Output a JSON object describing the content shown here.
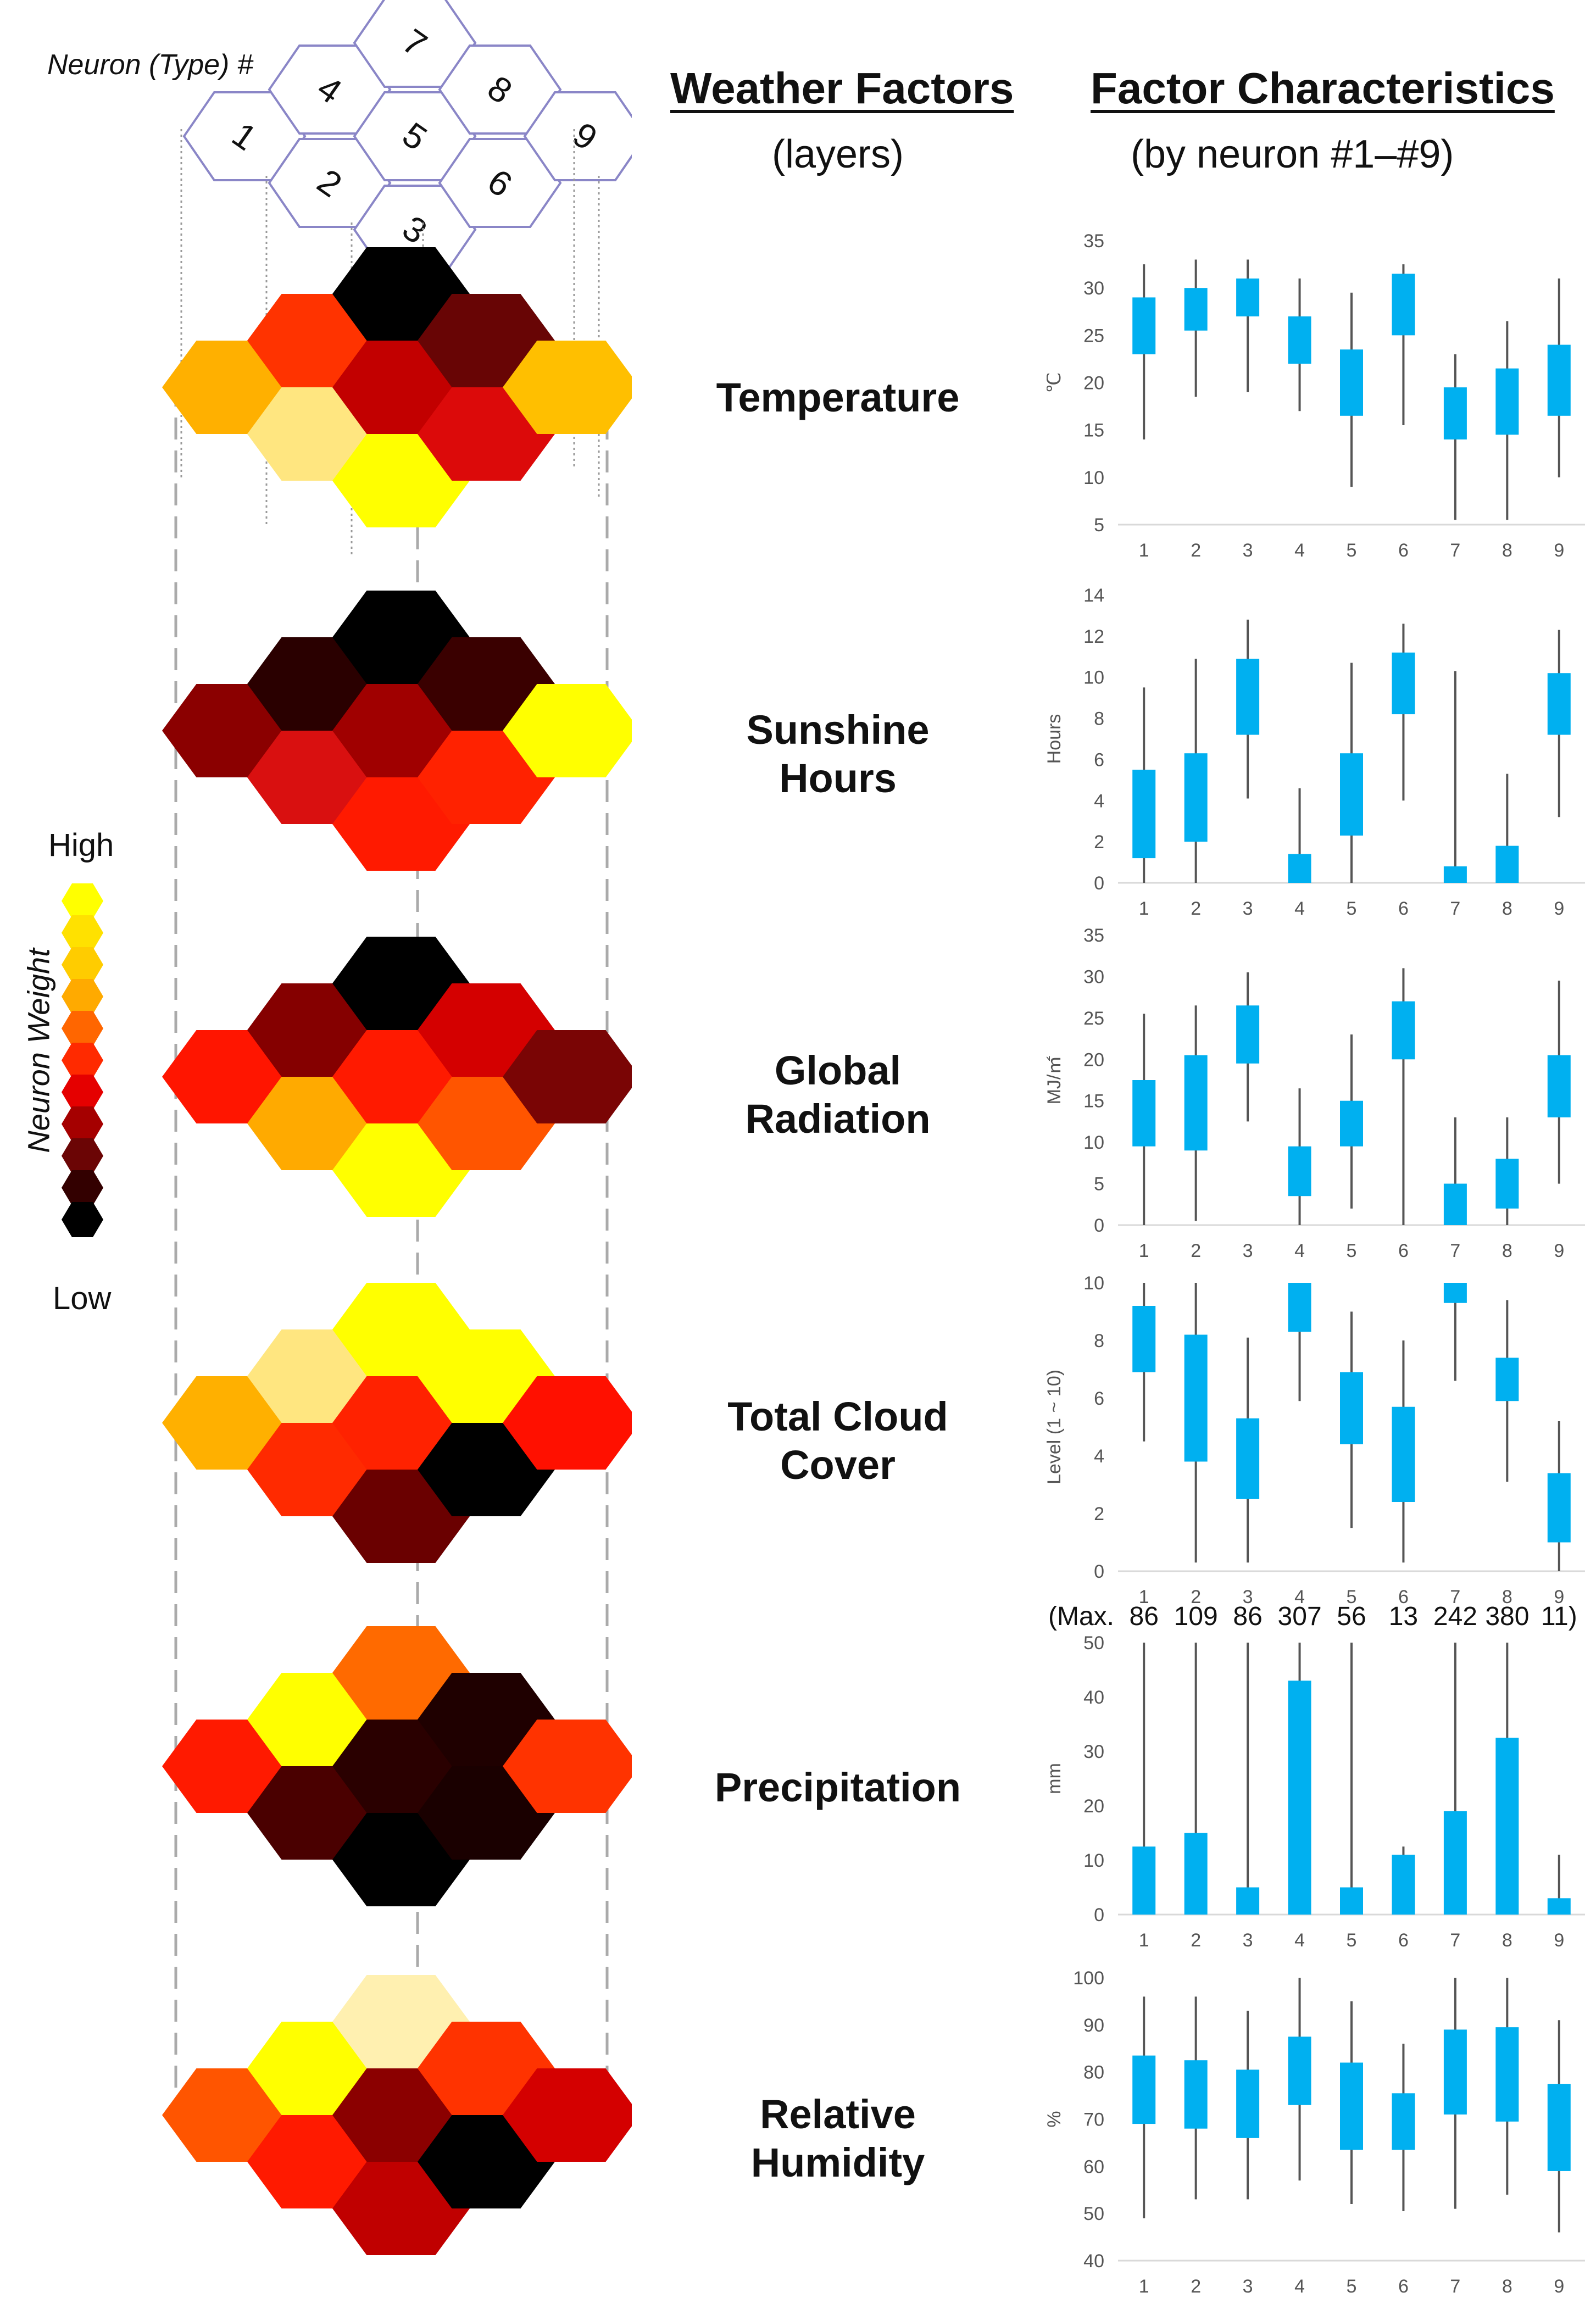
{
  "headers": {
    "weather_factors": "Weather Factors",
    "weather_factors_sub": "(layers)",
    "factor_characteristics": "Factor Characteristics",
    "factor_characteristics_sub": "(by neuron #1–#9)",
    "neuron_type": "Neuron (Type) #"
  },
  "neuron_numbers": [
    "1",
    "2",
    "3",
    "4",
    "5",
    "6",
    "7",
    "8",
    "9"
  ],
  "legend": {
    "title": "Neuron Weight",
    "high": "High",
    "low": "Low",
    "colors": [
      "#ffff00",
      "#ffe100",
      "#ffcc00",
      "#ffaa00",
      "#ff6600",
      "#ff2a00",
      "#e50000",
      "#a50000",
      "#6b0505",
      "#330000",
      "#000000"
    ]
  },
  "layers": [
    {
      "key": "temperature",
      "label_lines": [
        "Temperature"
      ],
      "colors": {
        "1": "#ffb000",
        "2": "#ffe680",
        "3": "#ffff00",
        "4": "#ff3300",
        "5": "#c20000",
        "6": "#dc0a0a",
        "7": "#000000",
        "8": "#680505",
        "9": "#ffbf00"
      }
    },
    {
      "key": "sunshine",
      "label_lines": [
        "Sunshine",
        "Hours"
      ],
      "colors": {
        "1": "#8b0000",
        "2": "#d91010",
        "3": "#ff1a00",
        "4": "#2a0000",
        "5": "#a00000",
        "6": "#ff2200",
        "7": "#000000",
        "8": "#3a0000",
        "9": "#ffff00"
      }
    },
    {
      "key": "radiation",
      "label_lines": [
        "Global",
        "Radiation"
      ],
      "colors": {
        "1": "#ff1500",
        "2": "#ffaa00",
        "3": "#ffff00",
        "4": "#850000",
        "5": "#ff1a00",
        "6": "#ff5500",
        "7": "#000000",
        "8": "#d40000",
        "9": "#7a0505"
      }
    },
    {
      "key": "cloud",
      "label_lines": [
        "Total Cloud",
        "Cover"
      ],
      "colors": {
        "1": "#ffb000",
        "2": "#ff2a00",
        "3": "#6a0000",
        "4": "#ffe680",
        "5": "#ff2200",
        "6": "#000000",
        "7": "#ffff00",
        "8": "#ffff00",
        "9": "#ff1000"
      }
    },
    {
      "key": "precipitation",
      "label_lines": [
        "Precipitation"
      ],
      "colors": {
        "1": "#ff1a00",
        "2": "#4a0000",
        "3": "#000000",
        "4": "#ffff00",
        "5": "#2a0000",
        "6": "#1a0000",
        "7": "#ff6a00",
        "8": "#1f0000",
        "9": "#ff3300"
      }
    },
    {
      "key": "humidity",
      "label_lines": [
        "Relative",
        "Humidity"
      ],
      "colors": {
        "1": "#ff5500",
        "2": "#ff1a00",
        "3": "#c00000",
        "4": "#ffff00",
        "5": "#8b0000",
        "6": "#000000",
        "7": "#fff0b0",
        "8": "#ff3300",
        "9": "#d40000"
      }
    }
  ],
  "chart_data": [
    {
      "type": "box",
      "key": "temperature",
      "ylabel": "℃",
      "ylim": [
        5,
        35
      ],
      "yticks": [
        5,
        10,
        15,
        20,
        25,
        30,
        35
      ],
      "categories": [
        "1",
        "2",
        "3",
        "4",
        "5",
        "6",
        "7",
        "8",
        "9"
      ],
      "boxes": [
        {
          "lo": 14,
          "q1": 23,
          "q3": 29,
          "hi": 32.5
        },
        {
          "lo": 18.5,
          "q1": 25.5,
          "q3": 30,
          "hi": 33
        },
        {
          "lo": 19,
          "q1": 27,
          "q3": 31,
          "hi": 33
        },
        {
          "lo": 17,
          "q1": 22,
          "q3": 27,
          "hi": 31
        },
        {
          "lo": 9,
          "q1": 16.5,
          "q3": 23.5,
          "hi": 29.5
        },
        {
          "lo": 15.5,
          "q1": 25,
          "q3": 31.5,
          "hi": 32.5
        },
        {
          "lo": 5.5,
          "q1": 14,
          "q3": 19.5,
          "hi": 23
        },
        {
          "lo": 5.5,
          "q1": 14.5,
          "q3": 21.5,
          "hi": 26.5
        },
        {
          "lo": 10,
          "q1": 16.5,
          "q3": 24,
          "hi": 31
        }
      ]
    },
    {
      "type": "box",
      "key": "sunshine",
      "ylabel": "Hours",
      "ylim": [
        0,
        14
      ],
      "yticks": [
        0,
        2,
        4,
        6,
        8,
        10,
        12,
        14
      ],
      "categories": [
        "1",
        "2",
        "3",
        "4",
        "5",
        "6",
        "7",
        "8",
        "9"
      ],
      "boxes": [
        {
          "lo": 0,
          "q1": 1.2,
          "q3": 5.5,
          "hi": 9.5
        },
        {
          "lo": 0,
          "q1": 2,
          "q3": 6.3,
          "hi": 10.9
        },
        {
          "lo": 4.1,
          "q1": 7.2,
          "q3": 10.9,
          "hi": 12.8
        },
        {
          "lo": 0,
          "q1": 0,
          "q3": 1.4,
          "hi": 4.6
        },
        {
          "lo": 0,
          "q1": 2.3,
          "q3": 6.3,
          "hi": 10.7
        },
        {
          "lo": 4,
          "q1": 8.2,
          "q3": 11.2,
          "hi": 12.6
        },
        {
          "lo": 0,
          "q1": 0,
          "q3": 0.8,
          "hi": 10.3
        },
        {
          "lo": 0,
          "q1": 0,
          "q3": 1.8,
          "hi": 5.3
        },
        {
          "lo": 3.2,
          "q1": 7.2,
          "q3": 10.2,
          "hi": 12.3
        }
      ]
    },
    {
      "type": "box",
      "key": "radiation",
      "ylabel": "MJ/㎡",
      "ylim": [
        0,
        35
      ],
      "yticks": [
        0,
        5,
        10,
        15,
        20,
        25,
        30,
        35
      ],
      "categories": [
        "1",
        "2",
        "3",
        "4",
        "5",
        "6",
        "7",
        "8",
        "9"
      ],
      "boxes": [
        {
          "lo": 0,
          "q1": 9.5,
          "q3": 17.5,
          "hi": 25.5
        },
        {
          "lo": 0.5,
          "q1": 9,
          "q3": 20.5,
          "hi": 26.5
        },
        {
          "lo": 12.5,
          "q1": 19.5,
          "q3": 26.5,
          "hi": 30.5
        },
        {
          "lo": 0,
          "q1": 3.5,
          "q3": 9.5,
          "hi": 16.5
        },
        {
          "lo": 2,
          "q1": 9.5,
          "q3": 15,
          "hi": 23
        },
        {
          "lo": 0,
          "q1": 20,
          "q3": 27,
          "hi": 31
        },
        {
          "lo": 0,
          "q1": 0,
          "q3": 5,
          "hi": 13
        },
        {
          "lo": 0,
          "q1": 2,
          "q3": 8,
          "hi": 13
        },
        {
          "lo": 5,
          "q1": 13,
          "q3": 20.5,
          "hi": 29.5
        }
      ]
    },
    {
      "type": "box",
      "key": "cloud",
      "ylabel": "Level (1 ~ 10)",
      "ylim": [
        0,
        10
      ],
      "yticks": [
        0,
        2,
        4,
        6,
        8,
        10
      ],
      "categories": [
        "1",
        "2",
        "3",
        "4",
        "5",
        "6",
        "7",
        "8",
        "9"
      ],
      "boxes": [
        {
          "lo": 4.5,
          "q1": 6.9,
          "q3": 9.2,
          "hi": 10
        },
        {
          "lo": 0.3,
          "q1": 3.8,
          "q3": 8.2,
          "hi": 10
        },
        {
          "lo": 0.3,
          "q1": 2.5,
          "q3": 5.3,
          "hi": 8.1
        },
        {
          "lo": 5.9,
          "q1": 8.3,
          "q3": 10,
          "hi": 10
        },
        {
          "lo": 1.5,
          "q1": 4.4,
          "q3": 6.9,
          "hi": 9
        },
        {
          "lo": 0.3,
          "q1": 2.4,
          "q3": 5.7,
          "hi": 8
        },
        {
          "lo": 6.6,
          "q1": 9.3,
          "q3": 10,
          "hi": 10
        },
        {
          "lo": 3.1,
          "q1": 5.9,
          "q3": 7.4,
          "hi": 9.4
        },
        {
          "lo": 0,
          "q1": 1,
          "q3": 3.4,
          "hi": 5.2
        }
      ]
    },
    {
      "type": "box",
      "key": "precipitation",
      "ylabel": "mm",
      "ylim": [
        0,
        50
      ],
      "yticks": [
        0,
        10,
        20,
        30,
        40,
        50
      ],
      "categories": [
        "1",
        "2",
        "3",
        "4",
        "5",
        "6",
        "7",
        "8",
        "9"
      ],
      "max_label": "(Max.",
      "max_values": [
        "86",
        "109",
        "86",
        "307",
        "56",
        "13",
        "242",
        "380",
        "11)"
      ],
      "boxes": [
        {
          "lo": 0,
          "q1": 0,
          "q3": 12.5,
          "hi": 50
        },
        {
          "lo": 0,
          "q1": 0,
          "q3": 15,
          "hi": 50
        },
        {
          "lo": 0,
          "q1": 0,
          "q3": 5,
          "hi": 50
        },
        {
          "lo": 0,
          "q1": 0,
          "q3": 43,
          "hi": 50
        },
        {
          "lo": 0,
          "q1": 0,
          "q3": 5,
          "hi": 50
        },
        {
          "lo": 0,
          "q1": 0,
          "q3": 11,
          "hi": 12.5
        },
        {
          "lo": 0,
          "q1": 0,
          "q3": 19,
          "hi": 50
        },
        {
          "lo": 0,
          "q1": 0,
          "q3": 32.5,
          "hi": 50
        },
        {
          "lo": 0,
          "q1": 0,
          "q3": 3,
          "hi": 11
        }
      ]
    },
    {
      "type": "box",
      "key": "humidity",
      "ylabel": "%",
      "ylim": [
        40,
        100
      ],
      "yticks": [
        40,
        50,
        60,
        70,
        80,
        90,
        100
      ],
      "categories": [
        "1",
        "2",
        "3",
        "4",
        "5",
        "6",
        "7",
        "8",
        "9"
      ],
      "boxes": [
        {
          "lo": 49,
          "q1": 69,
          "q3": 83.5,
          "hi": 96
        },
        {
          "lo": 53,
          "q1": 68,
          "q3": 82.5,
          "hi": 96
        },
        {
          "lo": 53,
          "q1": 66,
          "q3": 80.5,
          "hi": 93
        },
        {
          "lo": 57,
          "q1": 73,
          "q3": 87.5,
          "hi": 100
        },
        {
          "lo": 52,
          "q1": 63.5,
          "q3": 82,
          "hi": 95
        },
        {
          "lo": 50.5,
          "q1": 63.5,
          "q3": 75.5,
          "hi": 86
        },
        {
          "lo": 51,
          "q1": 71,
          "q3": 89,
          "hi": 100
        },
        {
          "lo": 54,
          "q1": 69.5,
          "q3": 89.5,
          "hi": 100
        },
        {
          "lo": 46,
          "q1": 59,
          "q3": 77.5,
          "hi": 91
        }
      ]
    }
  ]
}
